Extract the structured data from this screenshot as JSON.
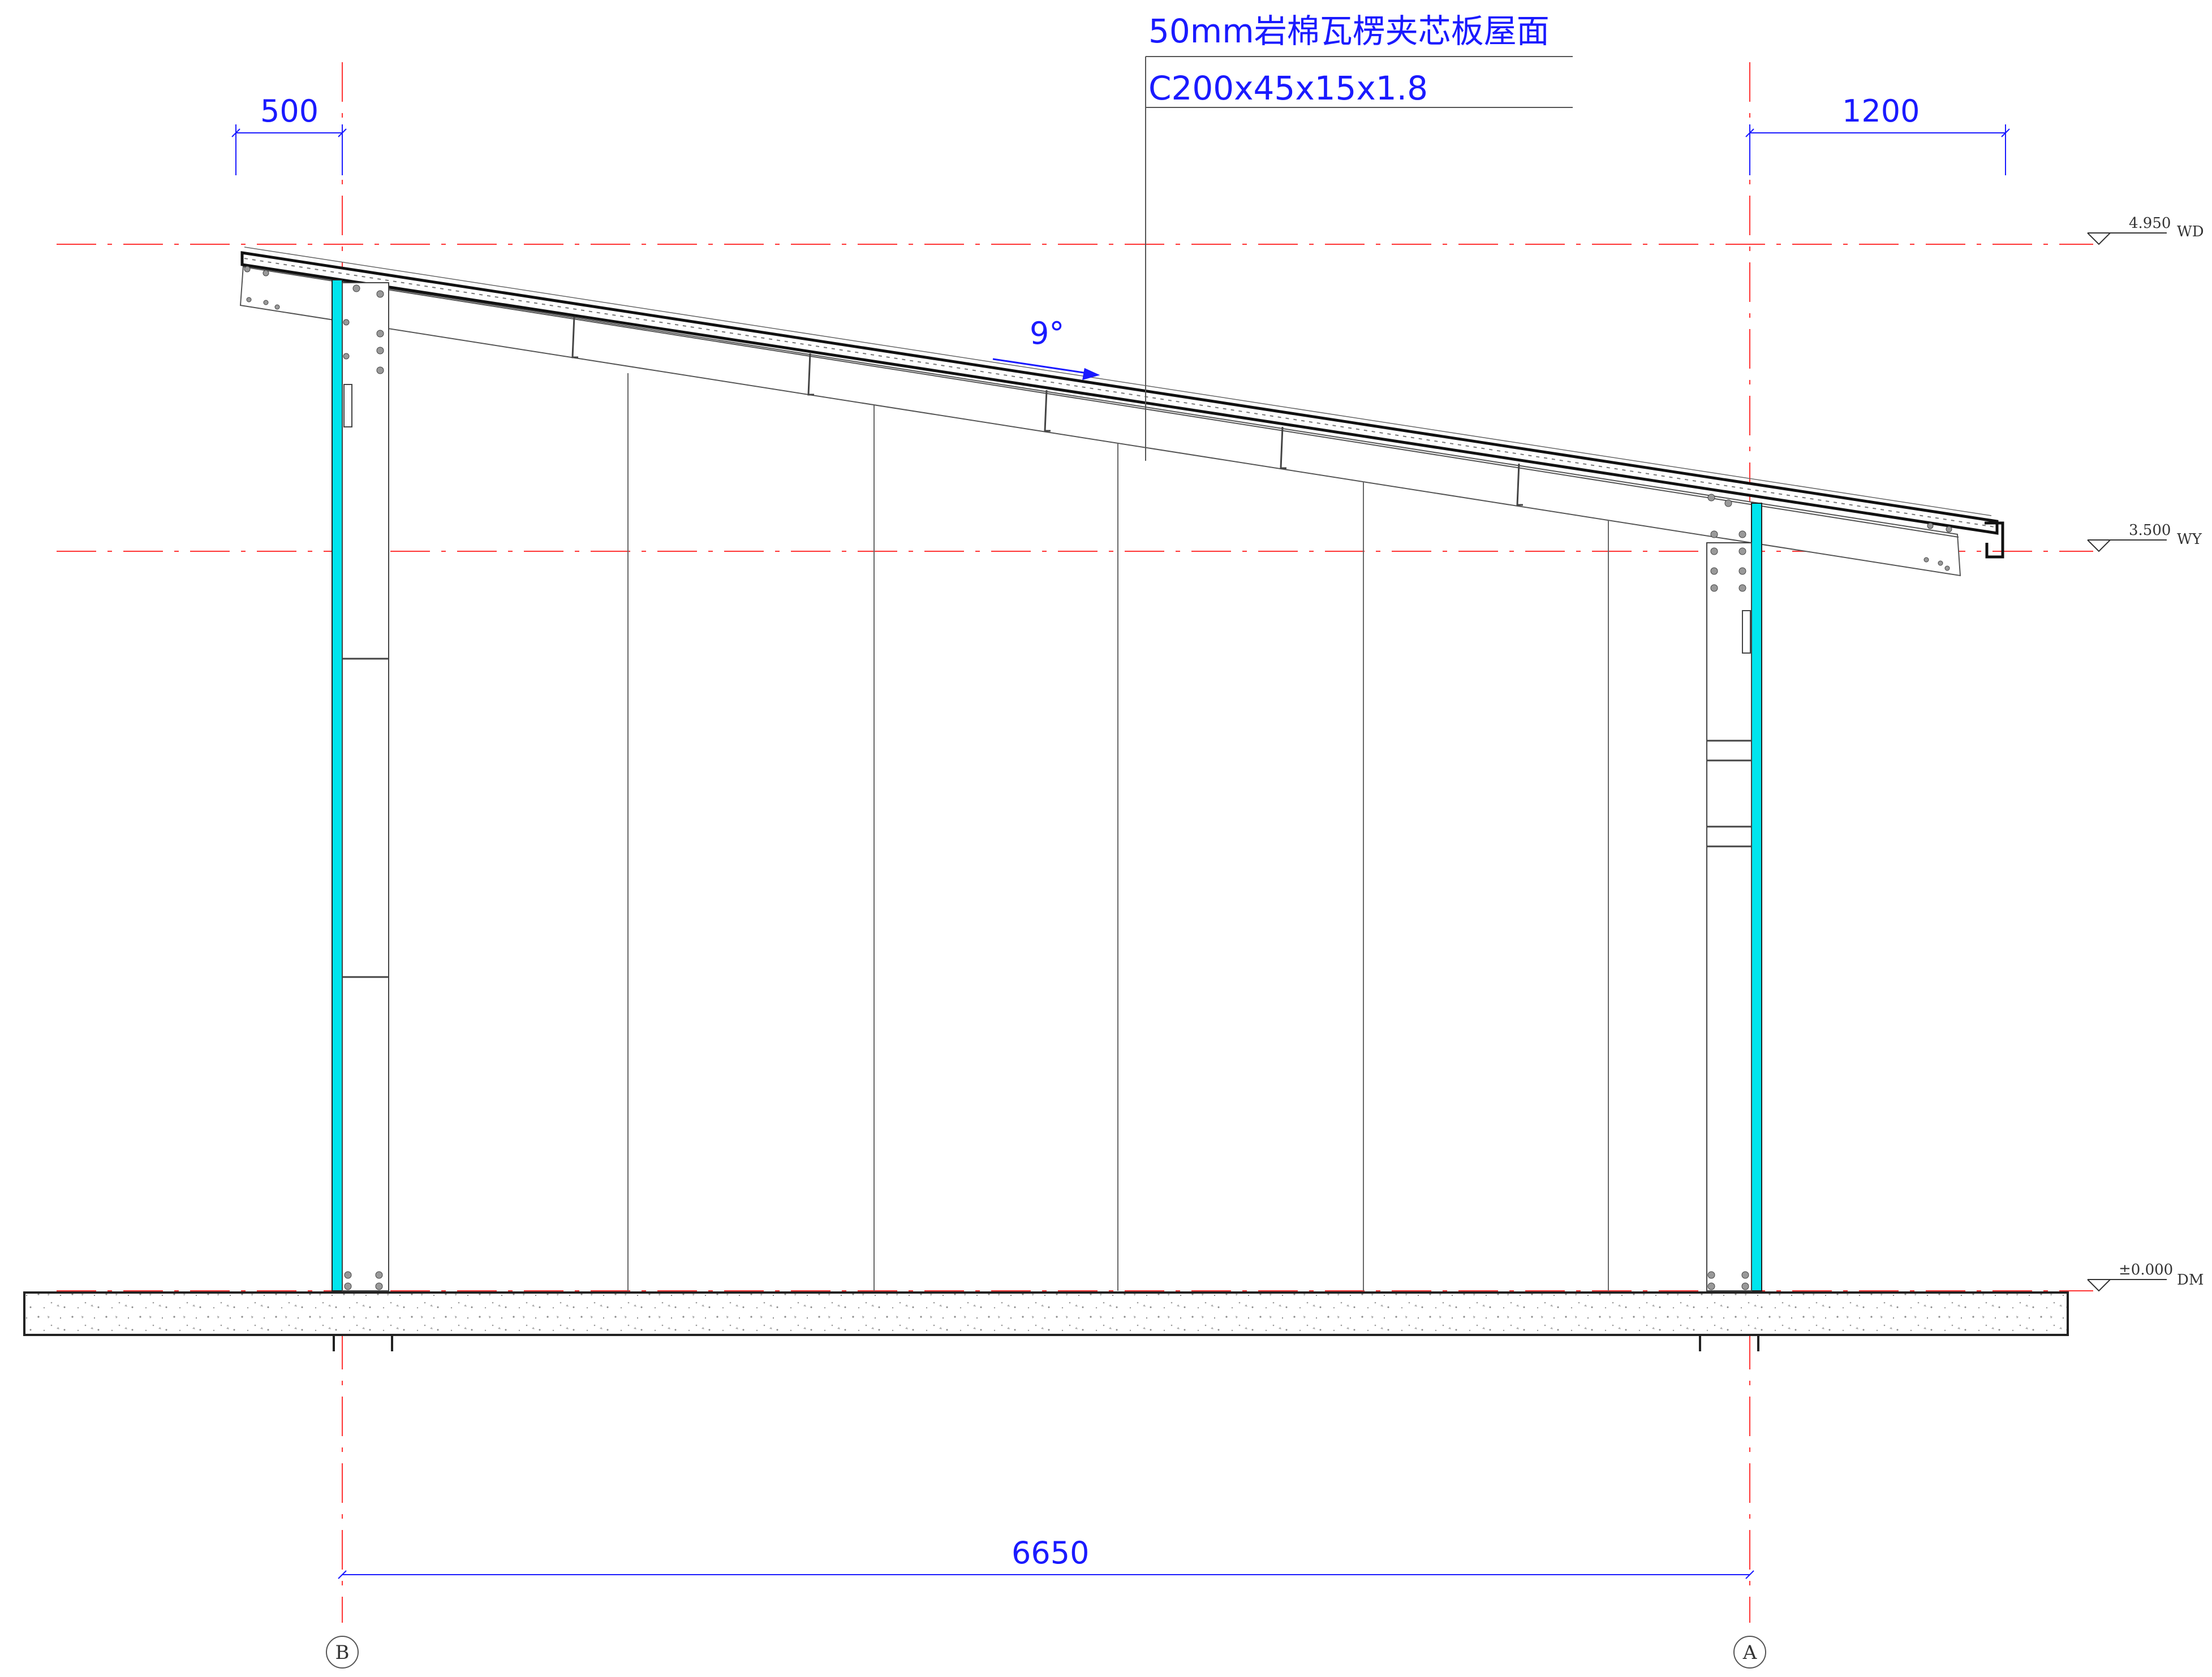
{
  "annotation": {
    "roof_panel": "50mm岩棉瓦楞夹芯板屋面",
    "purlin": "C200x45x15x1.8"
  },
  "slope": {
    "label": "9°"
  },
  "dimensions": {
    "left_overhang": "500",
    "right_overhang": "1200",
    "span": "6650"
  },
  "levels": [
    {
      "value": "4.950",
      "tag": "WD"
    },
    {
      "value": "3.500",
      "tag": "WY"
    },
    {
      "value": "±0.000",
      "tag": "DM"
    }
  ],
  "axes": {
    "left": "B",
    "right": "A"
  },
  "colors": {
    "dimension": "#1a1aff",
    "axis_line": "#ff3333",
    "column": "#00e5ee",
    "structure": "#444444"
  }
}
